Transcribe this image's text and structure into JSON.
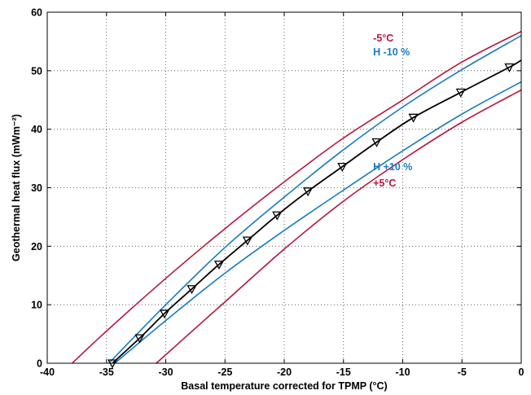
{
  "chart_data": {
    "type": "line",
    "xlabel": "Basal temperature corrected for TPMP (°C)",
    "ylabel": "Geothermal heat flux (mWm⁻²)",
    "xlim": [
      -40,
      0
    ],
    "ylim": [
      0,
      60
    ],
    "xticks": [
      -40,
      -35,
      -30,
      -25,
      -20,
      -15,
      -10,
      -5,
      0
    ],
    "yticks": [
      0,
      10,
      20,
      30,
      40,
      50,
      60
    ],
    "grid": true,
    "colors": {
      "central": "#000000",
      "temp_offset": "#b5173c",
      "h_offset": "#1a7bbf"
    },
    "series": [
      {
        "role": "central",
        "marker": "triangle-down",
        "x": [
          -34.5,
          -32.2,
          -30.1,
          -27.8,
          -25.5,
          -23.1,
          -20.6,
          -18.0,
          -15.1,
          -12.2,
          -9.1,
          -5.1,
          -1.0,
          0
        ],
        "y": [
          0,
          4.3,
          8.5,
          12.7,
          16.9,
          21.0,
          25.3,
          29.4,
          33.6,
          37.8,
          42.0,
          46.3,
          50.6,
          51.8
        ],
        "marker_x": [
          -34.5,
          -32.2,
          -30.1,
          -27.8,
          -25.5,
          -23.1,
          -20.6,
          -18.0,
          -15.1,
          -12.2,
          -9.1,
          -5.1,
          -1.0
        ],
        "marker_y": [
          0,
          4.3,
          8.5,
          12.7,
          16.9,
          21.0,
          25.3,
          29.4,
          33.6,
          37.8,
          42.0,
          46.3,
          50.6
        ]
      },
      {
        "name": "-5°C",
        "role": "temp_offset",
        "x": [
          -37.9,
          -35,
          -30,
          -25,
          -20,
          -15,
          -10,
          -5,
          0
        ],
        "y": [
          0,
          5.5,
          14.5,
          23.0,
          31.0,
          38.5,
          45.0,
          51.5,
          56.7
        ]
      },
      {
        "name": "+5°C",
        "role": "temp_offset",
        "x": [
          -30.8,
          -25,
          -20,
          -15,
          -10,
          -5,
          0
        ],
        "y": [
          0,
          10.5,
          19.5,
          27.7,
          34.8,
          41.2,
          46.7
        ]
      },
      {
        "name": "H -10 %",
        "role": "h_offset",
        "x": [
          -34.8,
          -30,
          -25,
          -20,
          -15,
          -10,
          -5,
          0
        ],
        "y": [
          0,
          10.0,
          19.8,
          28.4,
          36.5,
          43.8,
          50.2,
          56.0
        ]
      },
      {
        "name": "H +10 %",
        "role": "h_offset",
        "x": [
          -34.3,
          -30,
          -25,
          -20,
          -15,
          -10,
          -5,
          0
        ],
        "y": [
          0,
          7.3,
          15.4,
          22.7,
          29.6,
          36.3,
          42.6,
          48.1
        ]
      }
    ],
    "annotations": [
      {
        "text": "-5°C",
        "color": "#b5173c",
        "x": -12.5,
        "y": 55.0
      },
      {
        "text": "H -10 %",
        "color": "#1a7bbf",
        "x": -12.5,
        "y": 52.6
      },
      {
        "text": "H +10 %",
        "color": "#1a7bbf",
        "x": -12.5,
        "y": 33.0
      },
      {
        "text": "+5°C",
        "color": "#b5173c",
        "x": -12.5,
        "y": 30.2
      }
    ]
  }
}
